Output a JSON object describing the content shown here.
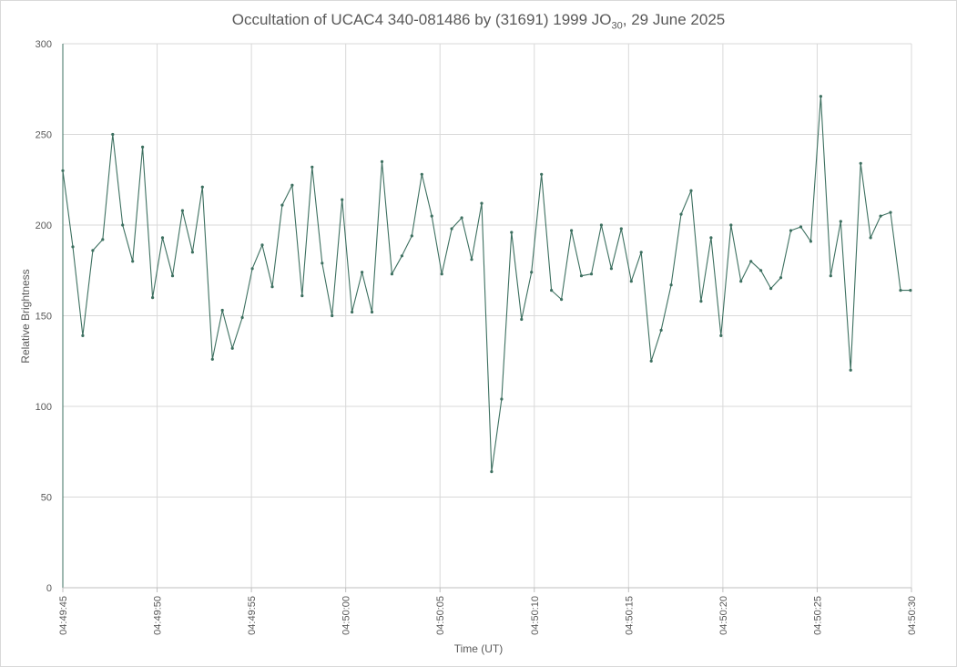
{
  "chart_data": {
    "type": "line",
    "title": "Occultation of UCAC4 340-081486 by (31691) 1999 JO",
    "title_subscript": "30",
    "title_suffix": ", 29 June 2025",
    "xlabel": "Time (UT)",
    "ylabel": "Relative Brightness",
    "ylim": [
      0,
      300
    ],
    "yticks": [
      0,
      50,
      100,
      150,
      200,
      250,
      300
    ],
    "xlim": [
      "04:49:45",
      "04:50:30"
    ],
    "xticks": [
      "04:49:45",
      "04:49:50",
      "04:49:55",
      "04:50:00",
      "04:50:05",
      "04:50:10",
      "04:50:15",
      "04:50:20",
      "04:50:25",
      "04:50:30"
    ],
    "grid": true,
    "legend": "none",
    "line_color": "#3d7060",
    "x_seconds_step": 0.5288,
    "values": [
      230,
      188,
      139,
      186,
      192,
      250,
      200,
      180,
      243,
      160,
      193,
      172,
      208,
      185,
      221,
      126,
      153,
      132,
      149,
      176,
      189,
      166,
      211,
      222,
      161,
      232,
      179,
      150,
      214,
      152,
      174,
      152,
      235,
      173,
      183,
      194,
      228,
      205,
      173,
      198,
      204,
      181,
      212,
      64,
      104,
      196,
      148,
      174,
      228,
      164,
      159,
      197,
      172,
      173,
      200,
      176,
      198,
      169,
      185,
      125,
      142,
      167,
      206,
      219,
      158,
      193,
      139,
      200,
      169,
      180,
      175,
      165,
      171,
      197,
      199,
      191,
      271,
      172,
      202,
      120,
      234,
      193,
      205,
      207,
      164,
      164
    ]
  }
}
